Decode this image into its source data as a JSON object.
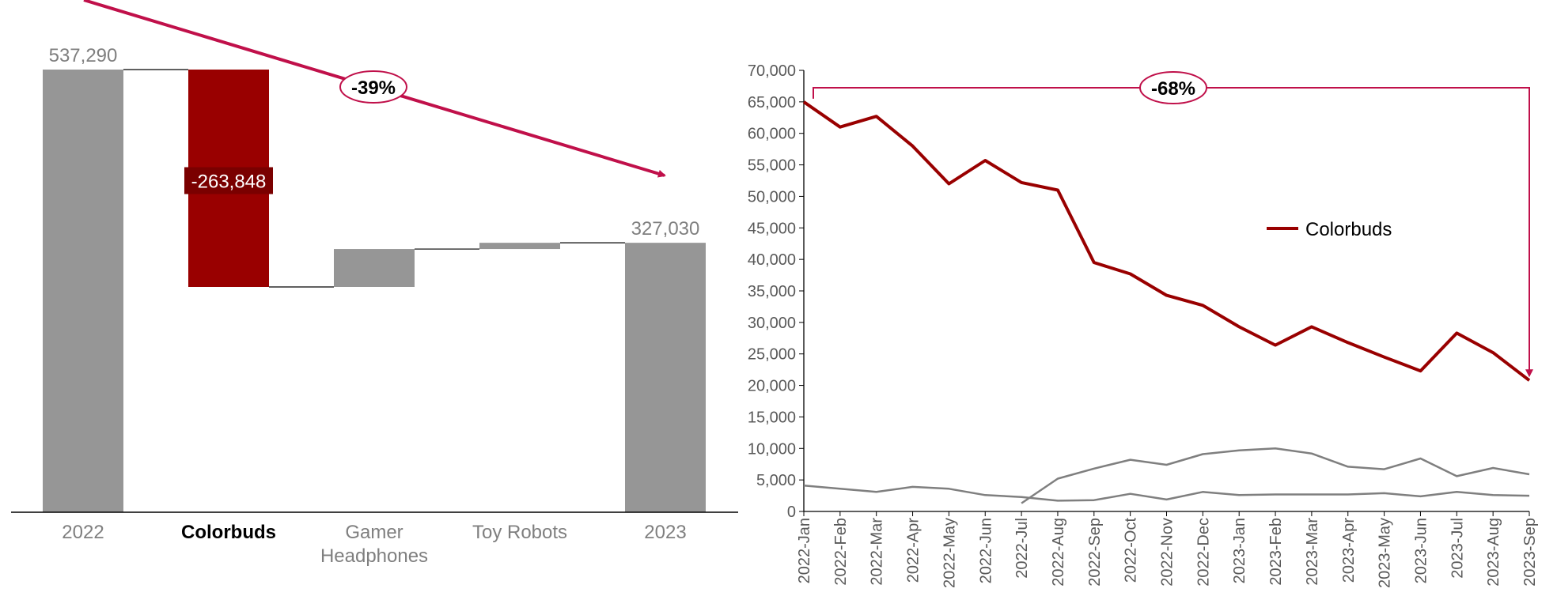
{
  "chart_data": [
    {
      "type": "waterfall",
      "categories": [
        "2022",
        "Colorbuds",
        "Gamer Headphones",
        "Toy Robots",
        "2023"
      ],
      "category_labels": [
        [
          "2022"
        ],
        [
          "Colorbuds"
        ],
        [
          "Gamer",
          "Headphones"
        ],
        [
          "Toy Robots"
        ],
        [
          "2023"
        ]
      ],
      "highlight_category": "Colorbuds",
      "start_value": 537290,
      "end_value": 327030,
      "changes": [
        {
          "category": "Colorbuds",
          "value": -263848
        },
        {
          "category": "Gamer Headphones",
          "value": 46000
        },
        {
          "category": "Toy Robots",
          "value": 7588
        }
      ],
      "labels": {
        "start": "537,290",
        "colorbuds": "-263,848",
        "end": "327,030"
      },
      "change_annotation": "-39%",
      "colors": {
        "total": "#969696",
        "highlight": "#990000",
        "arrow": "#C0104A",
        "axis_text": "#7f7f7f"
      }
    },
    {
      "type": "line",
      "x": [
        "2022-Jan",
        "2022-Feb",
        "2022-Mar",
        "2022-Apr",
        "2022-May",
        "2022-Jun",
        "2022-Jul",
        "2022-Aug",
        "2022-Sep",
        "2022-Oct",
        "2022-Nov",
        "2022-Dec",
        "2023-Jan",
        "2023-Feb",
        "2023-Mar",
        "2023-Apr",
        "2023-May",
        "2023-Jun",
        "2023-Jul",
        "2023-Aug",
        "2023-Sep"
      ],
      "ylim": [
        0,
        70000
      ],
      "yticks": [
        "0",
        "5,000",
        "10,000",
        "15,000",
        "20,000",
        "25,000",
        "30,000",
        "35,000",
        "40,000",
        "45,000",
        "50,000",
        "55,000",
        "60,000",
        "65,000",
        "70,000"
      ],
      "series": [
        {
          "name": "Colorbuds",
          "color": "#990000",
          "values": [
            65000,
            61000,
            62700,
            58000,
            52000,
            55700,
            52200,
            51000,
            39500,
            37700,
            34300,
            32700,
            29300,
            26400,
            29300,
            26800,
            24500,
            22300,
            28300,
            25200,
            20800
          ]
        },
        {
          "color": "#7f7f7f",
          "values": [
            4100,
            3600,
            3100,
            3900,
            3600,
            2600,
            2300,
            1700,
            1800,
            2800,
            1900,
            3100,
            2600,
            2700,
            2700,
            2700,
            2900,
            2400,
            3100,
            2600,
            2500
          ]
        },
        {
          "color": "#7f7f7f",
          "values": [
            null,
            null,
            null,
            null,
            null,
            null,
            1300,
            5200,
            6800,
            8200,
            7400,
            9100,
            9700,
            10000,
            9200,
            7100,
            6700,
            8400,
            5600,
            6900,
            5900
          ]
        }
      ],
      "legend": {
        "entries": [
          "Colorbuds"
        ],
        "placement": "right-middle"
      },
      "change_annotation": "-68%",
      "colors": {
        "arrow": "#C0104A",
        "axis_text": "#595959"
      }
    }
  ]
}
